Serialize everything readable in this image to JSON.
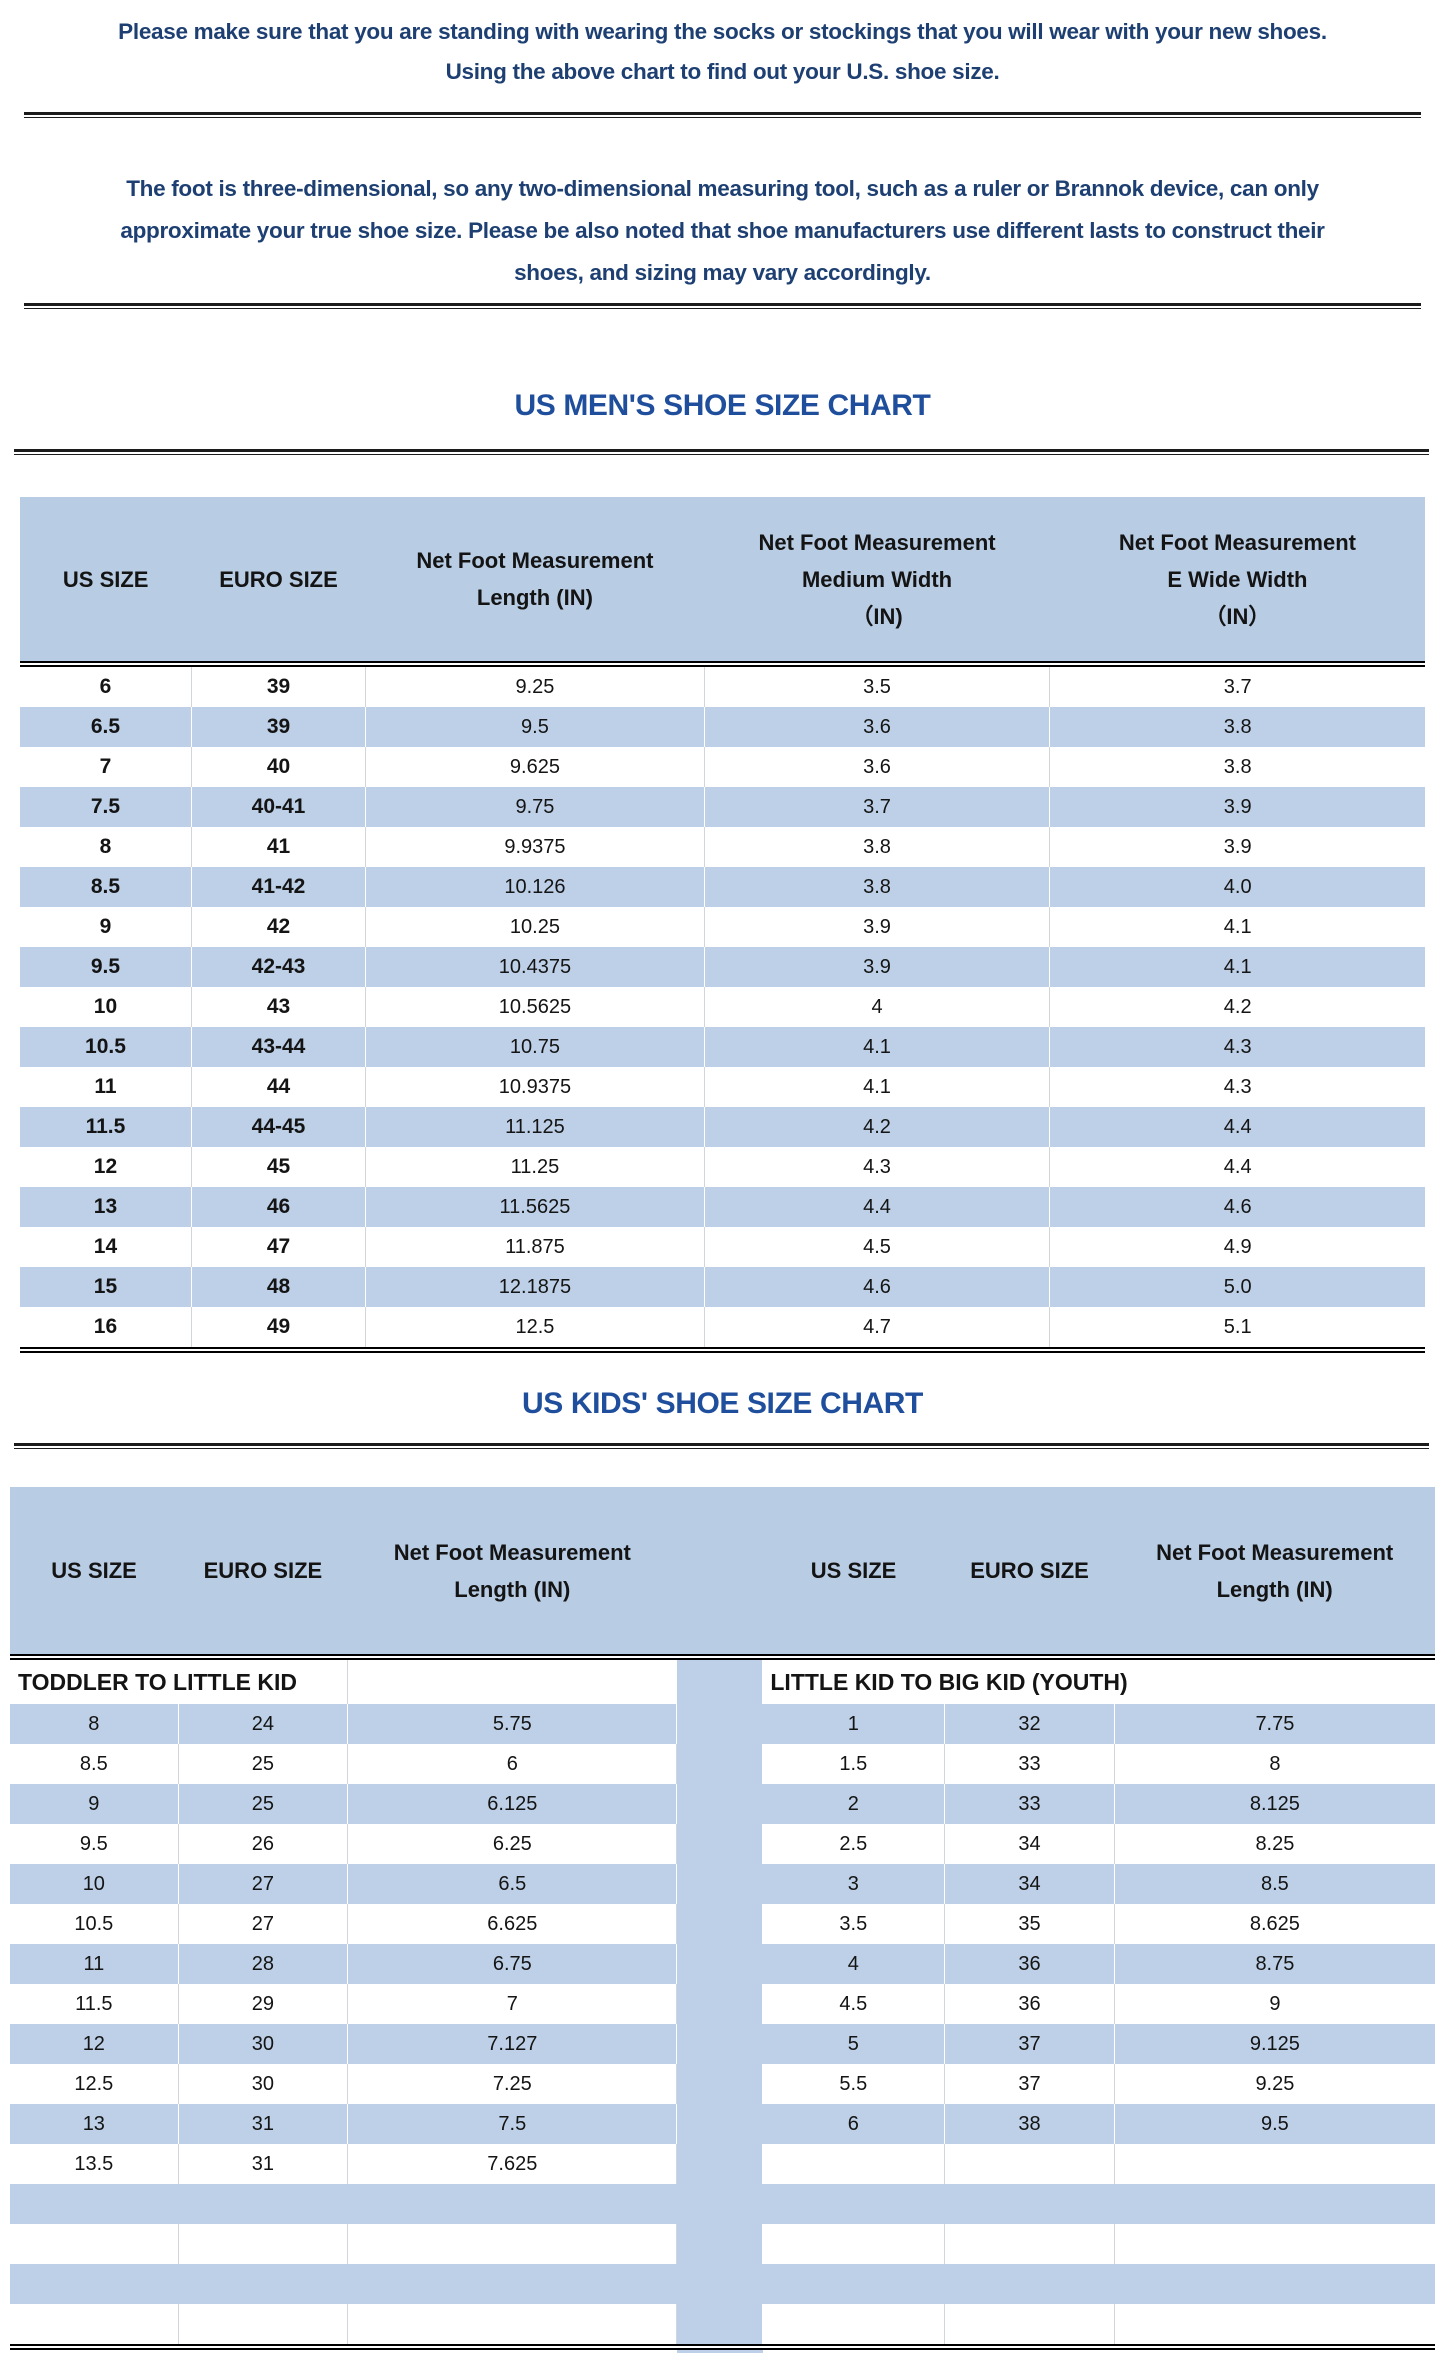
{
  "colors": {
    "para-navy": "#1d3f72",
    "title-blue": "#1f4e9c",
    "header-blue": "#b8cce4",
    "stripe-blue": "#bdd0e7",
    "divider": "#d2d6db",
    "line": "#1c1c1c"
  },
  "intro": {
    "line1": "Please make sure that you are standing with wearing the socks or stockings that you will wear with your new shoes.",
    "line2": "Using the above chart to find out your U.S. shoe size."
  },
  "note": "The foot is three-dimensional, so any two-dimensional measuring tool, such as a ruler or Brannok device, can only\napproximate your true shoe size. Please be also noted that shoe manufacturers use different lasts to construct their\nshoes, and sizing may vary accordingly.",
  "mens_chart": {
    "title": "US MEN'S SHOE SIZE CHART",
    "columns": [
      "US SIZE",
      "EURO SIZE",
      "Net Foot Measurement\nLength (IN)",
      "Net Foot Measurement\nMedium Width\n（IN)",
      "Net Foot Measurement\nE Wide Width\n（IN）"
    ],
    "rows": [
      [
        "6",
        "39",
        "9.25",
        "3.5",
        "3.7"
      ],
      [
        "6.5",
        "39",
        "9.5",
        "3.6",
        "3.8"
      ],
      [
        "7",
        "40",
        "9.625",
        "3.6",
        "3.8"
      ],
      [
        "7.5",
        "40-41",
        "9.75",
        "3.7",
        "3.9"
      ],
      [
        "8",
        "41",
        "9.9375",
        "3.8",
        "3.9"
      ],
      [
        "8.5",
        "41-42",
        "10.126",
        "3.8",
        "4.0"
      ],
      [
        "9",
        "42",
        "10.25",
        "3.9",
        "4.1"
      ],
      [
        "9.5",
        "42-43",
        "10.4375",
        "3.9",
        "4.1"
      ],
      [
        "10",
        "43",
        "10.5625",
        "4",
        "4.2"
      ],
      [
        "10.5",
        "43-44",
        "10.75",
        "4.1",
        "4.3"
      ],
      [
        "11",
        "44",
        "10.9375",
        "4.1",
        "4.3"
      ],
      [
        "11.5",
        "44-45",
        "11.125",
        "4.2",
        "4.4"
      ],
      [
        "12",
        "45",
        "11.25",
        "4.3",
        "4.4"
      ],
      [
        "13",
        "46",
        "11.5625",
        "4.4",
        "4.6"
      ],
      [
        "14",
        "47",
        "11.875",
        "4.5",
        "4.9"
      ],
      [
        "15",
        "48",
        "12.1875",
        "4.6",
        "5.0"
      ],
      [
        "16",
        "49",
        "12.5",
        "4.7",
        "5.1"
      ]
    ]
  },
  "kids_chart": {
    "title": "US KIDS' SHOE SIZE CHART",
    "columns": [
      "US SIZE",
      "EURO SIZE",
      "Net Foot Measurement\nLength (IN)"
    ],
    "left_label": "TODDLER TO LITTLE KID",
    "right_label": "LITTLE KID TO BIG KID (YOUTH)",
    "total_rows": 16,
    "left_rows": [
      [
        "8",
        "24",
        "5.75"
      ],
      [
        "8.5",
        "25",
        "6"
      ],
      [
        "9",
        "25",
        "6.125"
      ],
      [
        "9.5",
        "26",
        "6.25"
      ],
      [
        "10",
        "27",
        "6.5"
      ],
      [
        "10.5",
        "27",
        "6.625"
      ],
      [
        "11",
        "28",
        "6.75"
      ],
      [
        "11.5",
        "29",
        "7"
      ],
      [
        "12",
        "30",
        "7.127"
      ],
      [
        "12.5",
        "30",
        "7.25"
      ],
      [
        "13",
        "31",
        "7.5"
      ],
      [
        "13.5",
        "31",
        "7.625"
      ]
    ],
    "right_rows": [
      [
        "1",
        "32",
        "7.75"
      ],
      [
        "1.5",
        "33",
        "8"
      ],
      [
        "2",
        "33",
        "8.125"
      ],
      [
        "2.5",
        "34",
        "8.25"
      ],
      [
        "3",
        "34",
        "8.5"
      ],
      [
        "3.5",
        "35",
        "8.625"
      ],
      [
        "4",
        "36",
        "8.75"
      ],
      [
        "4.5",
        "36",
        "9"
      ],
      [
        "5",
        "37",
        "9.125"
      ],
      [
        "5.5",
        "37",
        "9.25"
      ],
      [
        "6",
        "38",
        "9.5"
      ]
    ]
  }
}
